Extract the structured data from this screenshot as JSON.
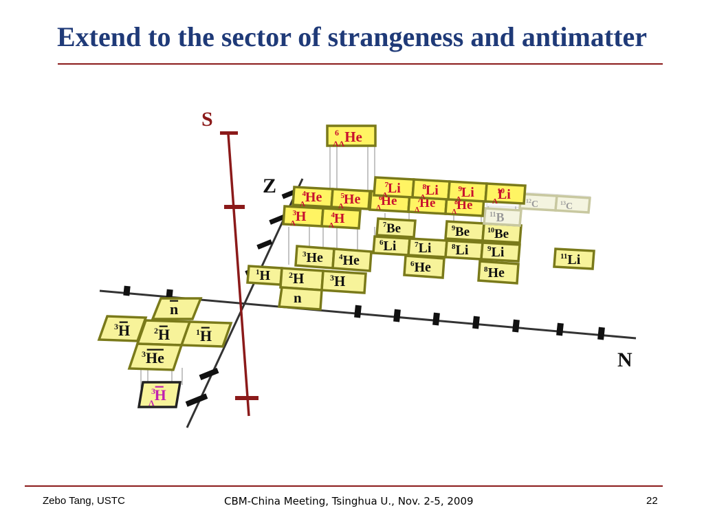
{
  "slide": {
    "title": "Extend to the sector of strangeness and antimatter",
    "footer_left": "Zebo Tang, USTC",
    "footer_center": "CBM-China Meeting, Tsinghua U., Nov. 2-5, 2009",
    "page_number": "22"
  },
  "colors": {
    "title": "#1f3a78",
    "rule": "#8b1a1a",
    "cell_fill": "#f7f39a",
    "cell_fill_bright": "#fff463",
    "cell_border": "#7a7a1a",
    "hyper_text": "#c8102e",
    "antihyper_text": "#c020b0",
    "s_axis": "#8b1a1a"
  },
  "axes": {
    "s_label": "S",
    "z_label": "Z",
    "n_label": "N"
  },
  "nuclei": {
    "ordinary": [
      {
        "sup": "1",
        "el": "H"
      },
      {
        "sup": "2",
        "el": "H"
      },
      {
        "sup": "3",
        "el": "H"
      },
      {
        "sup": "",
        "el": "n"
      },
      {
        "sup": "3",
        "el": "He"
      },
      {
        "sup": "4",
        "el": "He"
      },
      {
        "sup": "6",
        "el": "He"
      },
      {
        "sup": "8",
        "el": "He"
      },
      {
        "sup": "6",
        "el": "Li"
      },
      {
        "sup": "7",
        "el": "Li"
      },
      {
        "sup": "8",
        "el": "Li"
      },
      {
        "sup": "9",
        "el": "Li"
      },
      {
        "sup": "11",
        "el": "Li"
      },
      {
        "sup": "7",
        "el": "Be"
      },
      {
        "sup": "9",
        "el": "Be"
      },
      {
        "sup": "10",
        "el": "Be"
      },
      {
        "sup": "11",
        "el": "B"
      },
      {
        "sup": "12",
        "el": "C"
      },
      {
        "sup": "13",
        "el": "C"
      }
    ],
    "hyper": [
      {
        "sup": "3",
        "sub": "Λ",
        "el": "H"
      },
      {
        "sup": "4",
        "sub": "Λ",
        "el": "H"
      },
      {
        "sup": "4",
        "sub": "Λ",
        "el": "He"
      },
      {
        "sup": "5",
        "sub": "Λ",
        "el": "He"
      },
      {
        "sup": "6",
        "sub": "Λ",
        "el": "He"
      },
      {
        "sup": "7",
        "sub": "Λ",
        "el": "He"
      },
      {
        "sup": "8",
        "sub": "Λ",
        "el": "He"
      },
      {
        "sup": "7",
        "sub": "Λ",
        "el": "Li"
      },
      {
        "sup": "8",
        "sub": "Λ",
        "el": "Li"
      },
      {
        "sup": "9",
        "sub": "Λ",
        "el": "Li"
      },
      {
        "sup": "10",
        "sub": "Λ",
        "el": "Li"
      },
      {
        "sup": "6",
        "sub": "ΛΛ",
        "el": "He"
      }
    ],
    "anti": [
      {
        "sup": "",
        "el": "n"
      },
      {
        "sup": "1",
        "el": "H"
      },
      {
        "sup": "2",
        "el": "H"
      },
      {
        "sup": "3",
        "el": "H"
      },
      {
        "sup": "3",
        "el": "He"
      }
    ],
    "antihyper": [
      {
        "sup": "3",
        "sub": "Λ",
        "el": "H"
      }
    ]
  }
}
